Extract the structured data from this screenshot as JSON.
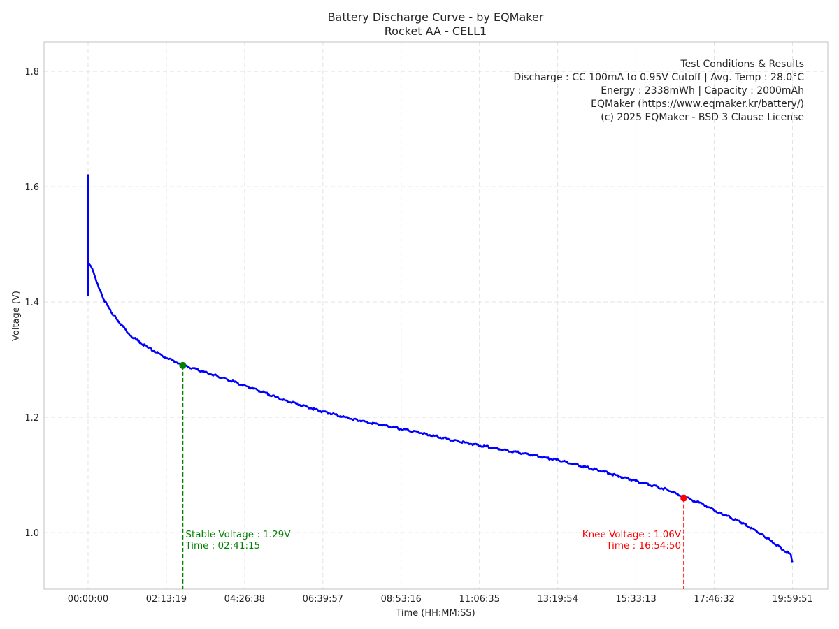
{
  "chart_data": {
    "type": "line",
    "title": "Battery Discharge Curve - by EQMaker",
    "subtitle": "Rocket AA - CELL1",
    "xlabel": "Time (HH:MM:SS)",
    "ylabel": "Voltage (V)",
    "x_unit": "hours",
    "xlim": [
      -1.25,
      21.0
    ],
    "ylim": [
      0.902,
      1.851
    ],
    "grid": true,
    "x_ticks": [
      0,
      2.2219,
      4.4439,
      6.6658,
      8.8878,
      11.1097,
      13.3317,
      15.5536,
      17.7756,
      19.9975
    ],
    "x_tick_labels": [
      "00:00:00",
      "02:13:19",
      "04:26:38",
      "06:39:57",
      "08:53:16",
      "11:06:35",
      "13:19:54",
      "15:33:13",
      "17:46:32",
      "19:59:51"
    ],
    "y_ticks": [
      1.0,
      1.2,
      1.4,
      1.6,
      1.8
    ],
    "y_tick_labels": [
      "1.0",
      "1.2",
      "1.4",
      "1.6",
      "1.8"
    ],
    "series": [
      {
        "name": "Voltage",
        "color": "#0000ff",
        "x": [
          0,
          0,
          0,
          0.12,
          0.41,
          0.71,
          1.2,
          1.69,
          2.18,
          2.67,
          3.65,
          4.63,
          5.61,
          6.59,
          7.57,
          8.56,
          9.54,
          10.52,
          11.5,
          12.48,
          13.46,
          14.44,
          15.42,
          16.41,
          16.91,
          17.39,
          17.98,
          18.57,
          19.16,
          19.55,
          19.95,
          19.9975
        ],
        "y": [
          1.41,
          1.62,
          1.47,
          1.457,
          1.408,
          1.378,
          1.342,
          1.321,
          1.305,
          1.291,
          1.272,
          1.251,
          1.229,
          1.211,
          1.196,
          1.184,
          1.172,
          1.158,
          1.147,
          1.136,
          1.124,
          1.109,
          1.092,
          1.075,
          1.062,
          1.051,
          1.033,
          1.017,
          0.996,
          0.978,
          0.962,
          0.95
        ]
      }
    ],
    "annotations": {
      "stable": {
        "x": 2.6875,
        "y": 1.29,
        "color": "#008000",
        "line1": "Stable Voltage : 1.29V",
        "line2": "Time : 02:41:15"
      },
      "knee": {
        "x": 16.9139,
        "y": 1.06,
        "color": "#ff0000",
        "line1": "Knee Voltage : 1.06V",
        "line2": "Time : 16:54:50"
      }
    },
    "info_box": {
      "placement": "top-right",
      "lines": [
        "Test Conditions & Results",
        "Discharge : CC 100mA to 0.95V Cutoff | Avg. Temp : 28.0°C",
        "Energy : 2338mWh | Capacity : 2000mAh",
        "EQMaker (https://www.eqmaker.kr/battery/)",
        "(c) 2025 EQMaker - BSD 3 Clause License"
      ]
    }
  }
}
